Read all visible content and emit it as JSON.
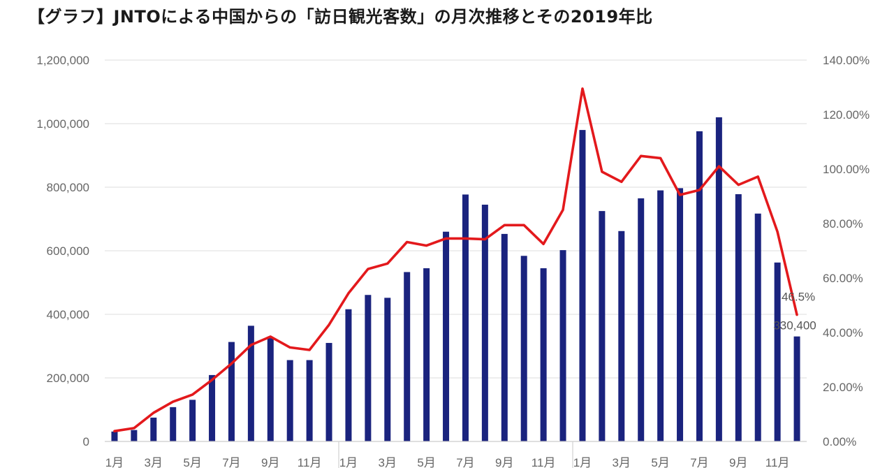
{
  "title": "【グラフ】JNTOによる中国からの「訪日観光客数」の月次推移とその2019年比",
  "chart_data": {
    "type": "bar",
    "categories": [
      "1月",
      "2月",
      "3月",
      "4月",
      "5月",
      "6月",
      "7月",
      "8月",
      "9月",
      "10月",
      "11月",
      "12月",
      "1月",
      "2月",
      "3月",
      "4月",
      "5月",
      "6月",
      "7月",
      "8月",
      "9月",
      "10月",
      "11月",
      "12月",
      "1月",
      "2月",
      "3月",
      "4月",
      "5月",
      "6月",
      "7月",
      "8月",
      "9月",
      "10月",
      "11月",
      "12月"
    ],
    "visible_tick_labels": [
      "1月",
      "3月",
      "5月",
      "7月",
      "9月",
      "11月",
      "1月",
      "3月",
      "5月",
      "7月",
      "9月",
      "11月",
      "1月",
      "3月",
      "5月",
      "7月",
      "9月",
      "11月"
    ],
    "series": [
      {
        "values": [
          31200,
          36000,
          75000,
          108000,
          131000,
          209000,
          313000,
          364000,
          325000,
          256000,
          256000,
          310000,
          416000,
          461000,
          452000,
          533000,
          545000,
          660000,
          777000,
          745000,
          653000,
          584000,
          545000,
          602000,
          980000,
          725000,
          662000,
          765000,
          790000,
          797000,
          976000,
          1020000,
          778000,
          717000,
          563000,
          330400
        ]
      },
      {
        "axis": "right",
        "values": [
          3.8,
          4.9,
          10.5,
          14.6,
          17.2,
          22.6,
          28.6,
          35.4,
          38.5,
          34.5,
          33.6,
          42.8,
          54.4,
          63.3,
          65.3,
          73.2,
          71.9,
          74.5,
          74.5,
          74.2,
          79.4,
          79.4,
          72.5,
          85.0,
          129.5,
          99.0,
          95.3,
          104.8,
          104.0,
          90.5,
          92.3,
          101.0,
          94.2,
          97.2,
          77.0,
          46.5
        ]
      }
    ],
    "ylim": [
      0,
      1200000
    ],
    "yticks": [
      "0",
      "200,000",
      "400,000",
      "600,000",
      "800,000",
      "1,000,000",
      "1,200,000"
    ],
    "y2lim": [
      0,
      140
    ],
    "y2ticks": [
      "0.00%",
      "20.00%",
      "40.00%",
      "60.00%",
      "80.00%",
      "100.00%",
      "120.00%",
      "140.00%"
    ],
    "annotations": [
      "46.5%",
      "330,400"
    ],
    "grid": true,
    "colors": {
      "bars": "#1a237e",
      "line": "#e3191c",
      "grid": "#e4e4e4"
    }
  }
}
